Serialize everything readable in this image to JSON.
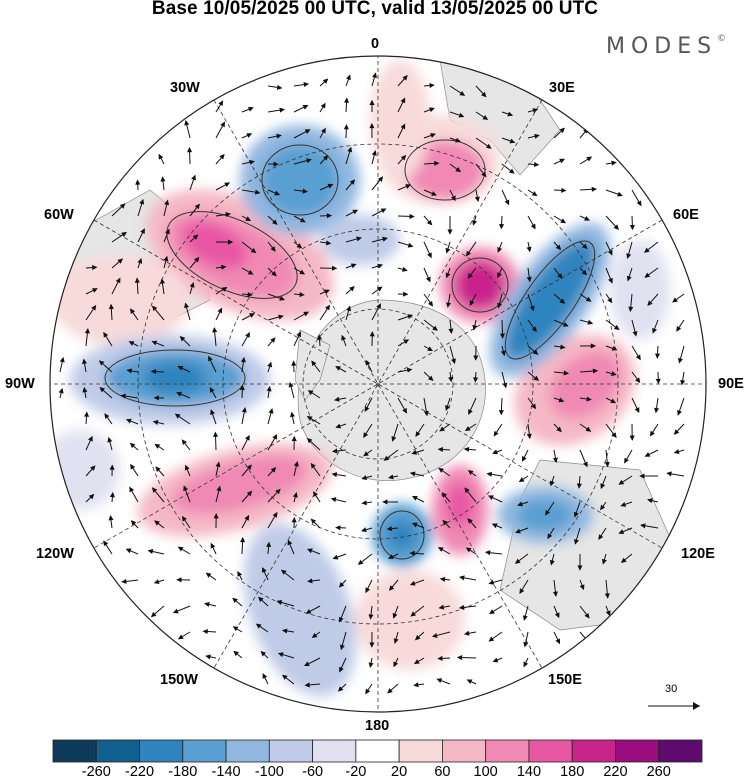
{
  "title": "Base 10/05/2025 00 UTC, valid 13/05/2025 00 UTC",
  "brand": "MODES",
  "brand_mark": "©",
  "map": {
    "projection": "south polar stereographic",
    "field": "shaded anomaly with wind arrows",
    "longitude_labels": {
      "top": "0",
      "bottom": "180",
      "left": "90W",
      "right": "90E",
      "upper_left_1": "30W",
      "upper_left_2": "60W",
      "lower_left_1": "120W",
      "lower_left_2": "150W",
      "upper_right_1": "30E",
      "upper_right_2": "60E",
      "lower_right_1": "120E",
      "lower_right_2": "150E"
    },
    "reference_vector": "30"
  },
  "colorbar": {
    "labels": [
      "-260",
      "-220",
      "-180",
      "-140",
      "-100",
      "-60",
      "-20",
      "20",
      "60",
      "100",
      "140",
      "180",
      "220",
      "260"
    ],
    "colors": [
      "#0e3a5c",
      "#105f8f",
      "#2f84be",
      "#5a9fd1",
      "#91b7e0",
      "#c0cbe8",
      "#e2e1f1",
      "#ffffff",
      "#f8dada",
      "#f5b8c6",
      "#f089b4",
      "#e857a4",
      "#c9238c",
      "#9b0c7e",
      "#5e0a6e"
    ]
  }
}
